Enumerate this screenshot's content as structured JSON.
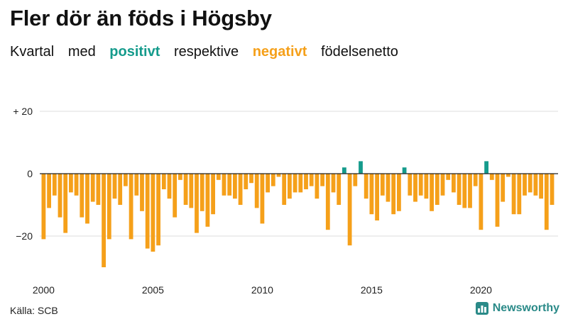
{
  "title": "Fler dör än föds i Högsby",
  "subtitle": {
    "part1": "Kvartal",
    "part2": "med",
    "positive": "positivt",
    "part3": "respektive",
    "negative": "negativt",
    "part4": "födelsenetto"
  },
  "source": "Källa: SCB",
  "brand": {
    "name": "Newsworthy",
    "icon": "newsworthy-logo-icon"
  },
  "colors": {
    "positive": "#159b8c",
    "negative": "#f5a01a",
    "grid": "#dddddd",
    "axis": "#222222"
  },
  "chart_data": {
    "type": "bar",
    "x_start": 2000,
    "periods_per_year": 4,
    "x_ticks": [
      "2000",
      "2005",
      "2010",
      "2015",
      "2020"
    ],
    "y_ticks": [
      {
        "value": 20,
        "label": "+ 20"
      },
      {
        "value": 0,
        "label": "0"
      },
      {
        "value": -20,
        "label": "−20"
      }
    ],
    "ylim": [
      -31,
      27
    ],
    "grid": true,
    "values": [
      -21,
      -11,
      -7,
      -14,
      -19,
      -6,
      -7,
      -14,
      -16,
      -9,
      -10,
      -30,
      -21,
      -8,
      -10,
      -4,
      -21,
      -7,
      -12,
      -24,
      -25,
      -23,
      -5,
      -8,
      -14,
      -2,
      -10,
      -11,
      -19,
      -12,
      -17,
      -13,
      -2,
      -7,
      -7,
      -8,
      -10,
      -5,
      -3,
      -11,
      -16,
      -6,
      -4,
      -1,
      -10,
      -8,
      -6,
      -6,
      -5,
      -4,
      -8,
      -4,
      -18,
      -6,
      -10,
      2,
      -23,
      -4,
      4,
      -8,
      -13,
      -15,
      -7,
      -9,
      -13,
      -12,
      2,
      -7,
      -9,
      -7,
      -8,
      -12,
      -10,
      -7,
      -2,
      -6,
      -10,
      -11,
      -11,
      -4,
      -18,
      4,
      -2,
      -17,
      -9,
      -1,
      -13,
      -13,
      -7,
      -6,
      -7,
      -8,
      -18,
      -10
    ]
  }
}
